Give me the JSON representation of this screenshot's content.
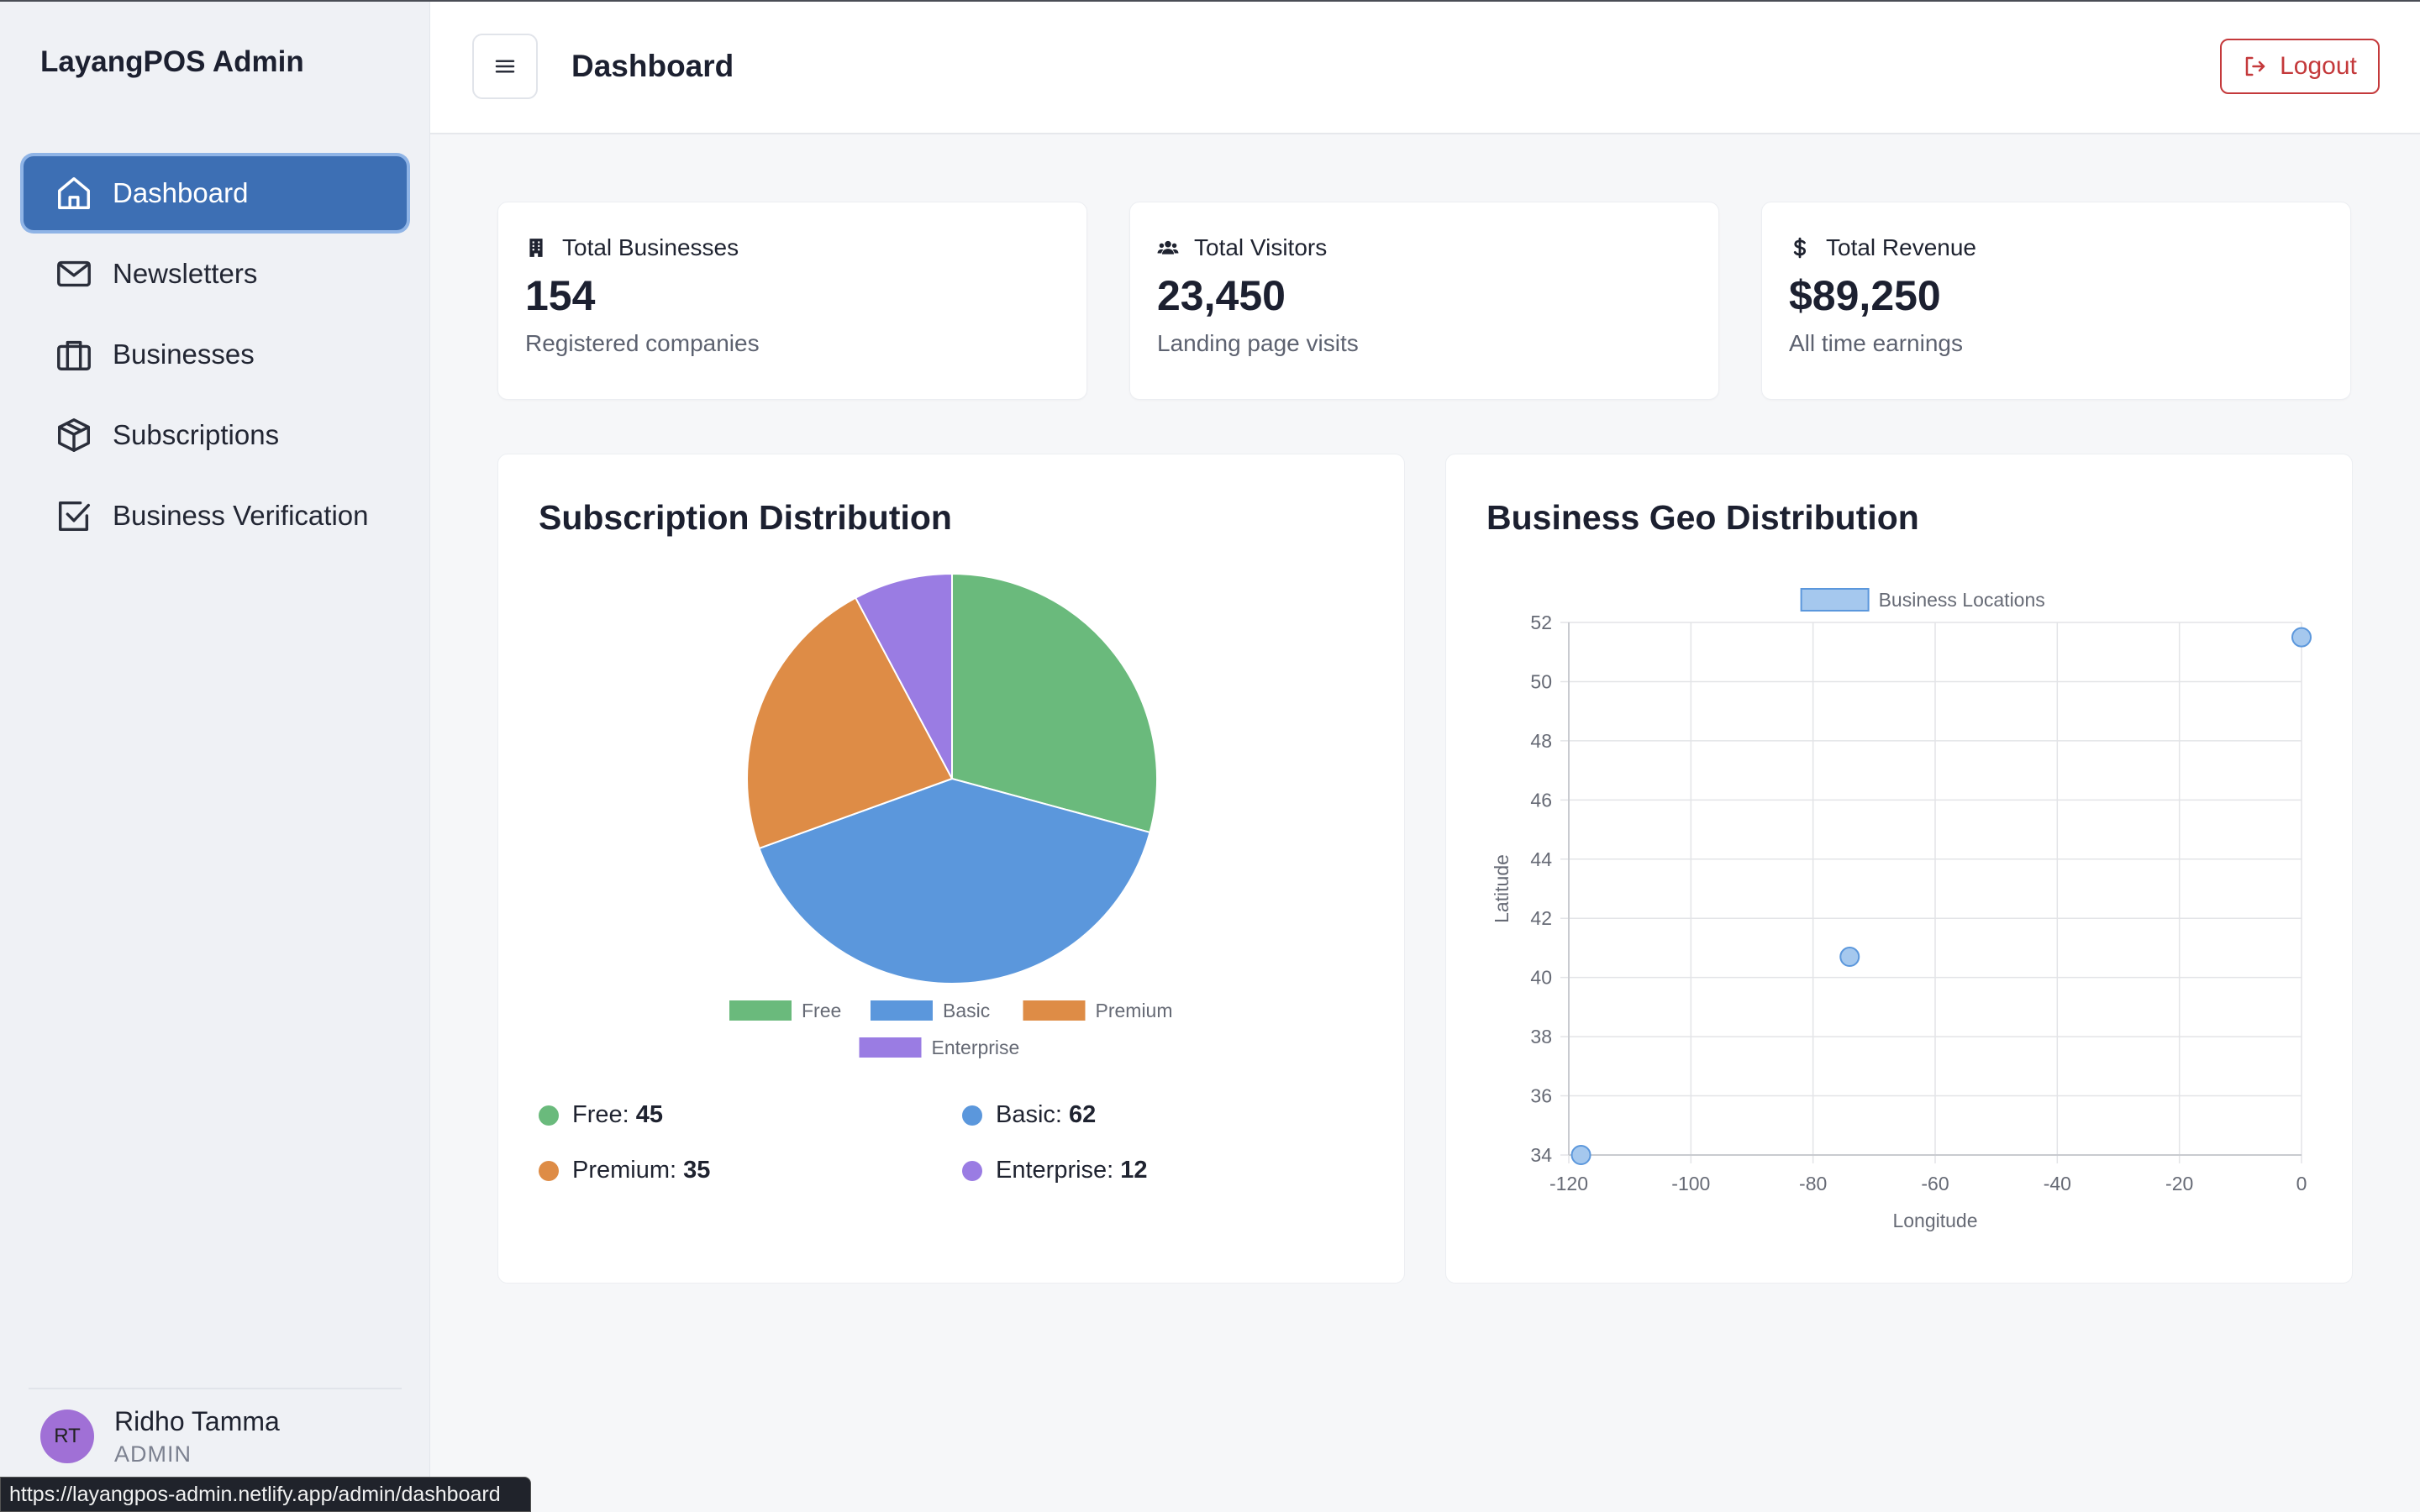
{
  "app": {
    "brand": "LayangPOS Admin"
  },
  "sidebar": {
    "items": [
      {
        "label": "Dashboard",
        "icon": "home-icon",
        "active": true
      },
      {
        "label": "Newsletters",
        "icon": "mail-icon",
        "active": false
      },
      {
        "label": "Businesses",
        "icon": "briefcase-icon",
        "active": false
      },
      {
        "label": "Subscriptions",
        "icon": "package-icon",
        "active": false
      },
      {
        "label": "Business Verification",
        "icon": "check-square-icon",
        "active": false
      }
    ],
    "user": {
      "initials": "RT",
      "name": "Ridho Tamma",
      "role": "ADMIN"
    }
  },
  "status_bar": {
    "url": "https://layangpos-admin.netlify.app/admin/dashboard"
  },
  "header": {
    "title": "Dashboard",
    "logout_label": "Logout"
  },
  "stats": [
    {
      "icon": "building-icon",
      "title": "Total Businesses",
      "value": "154",
      "subtitle": "Registered companies"
    },
    {
      "icon": "users-icon",
      "title": "Total Visitors",
      "value": "23,450",
      "subtitle": "Landing page visits"
    },
    {
      "icon": "dollar-icon",
      "title": "Total Revenue",
      "value": "$89,250",
      "subtitle": "All time earnings"
    }
  ],
  "subscription": {
    "title": "Subscription Distribution",
    "counts": [
      {
        "label": "Free:",
        "value": "45"
      },
      {
        "label": "Basic:",
        "value": "62"
      },
      {
        "label": "Premium:",
        "value": "35"
      },
      {
        "label": "Enterprise:",
        "value": "12"
      }
    ]
  },
  "geo": {
    "title": "Business Geo Distribution"
  },
  "colors": {
    "accent": "#3d6fb4",
    "danger": "#c4393b",
    "free": "#6aba7c",
    "basic": "#5b97dc",
    "premium": "#de8c46",
    "enterprise": "#9a7ce3",
    "point": "#a5c8ee"
  },
  "chart_data": [
    {
      "type": "pie",
      "categories": [
        "Free",
        "Basic",
        "Premium",
        "Enterprise"
      ],
      "values": [
        45,
        62,
        35,
        12
      ],
      "legend": "bottom"
    },
    {
      "type": "scatter",
      "series": [
        {
          "name": "Business Locations",
          "points": [
            {
              "x": -118,
              "y": 34
            },
            {
              "x": -74,
              "y": 40.7
            },
            {
              "x": 0,
              "y": 51.5
            }
          ]
        }
      ],
      "xlabel": "Longitude",
      "ylabel": "Latitude",
      "xlim": [
        -120,
        0
      ],
      "ylim": [
        34,
        52
      ],
      "xticks": [
        -120,
        -100,
        -80,
        -60,
        -40,
        -20,
        0
      ],
      "yticks": [
        34,
        36,
        38,
        40,
        42,
        44,
        46,
        48,
        50,
        52
      ],
      "legend": "top"
    }
  ]
}
